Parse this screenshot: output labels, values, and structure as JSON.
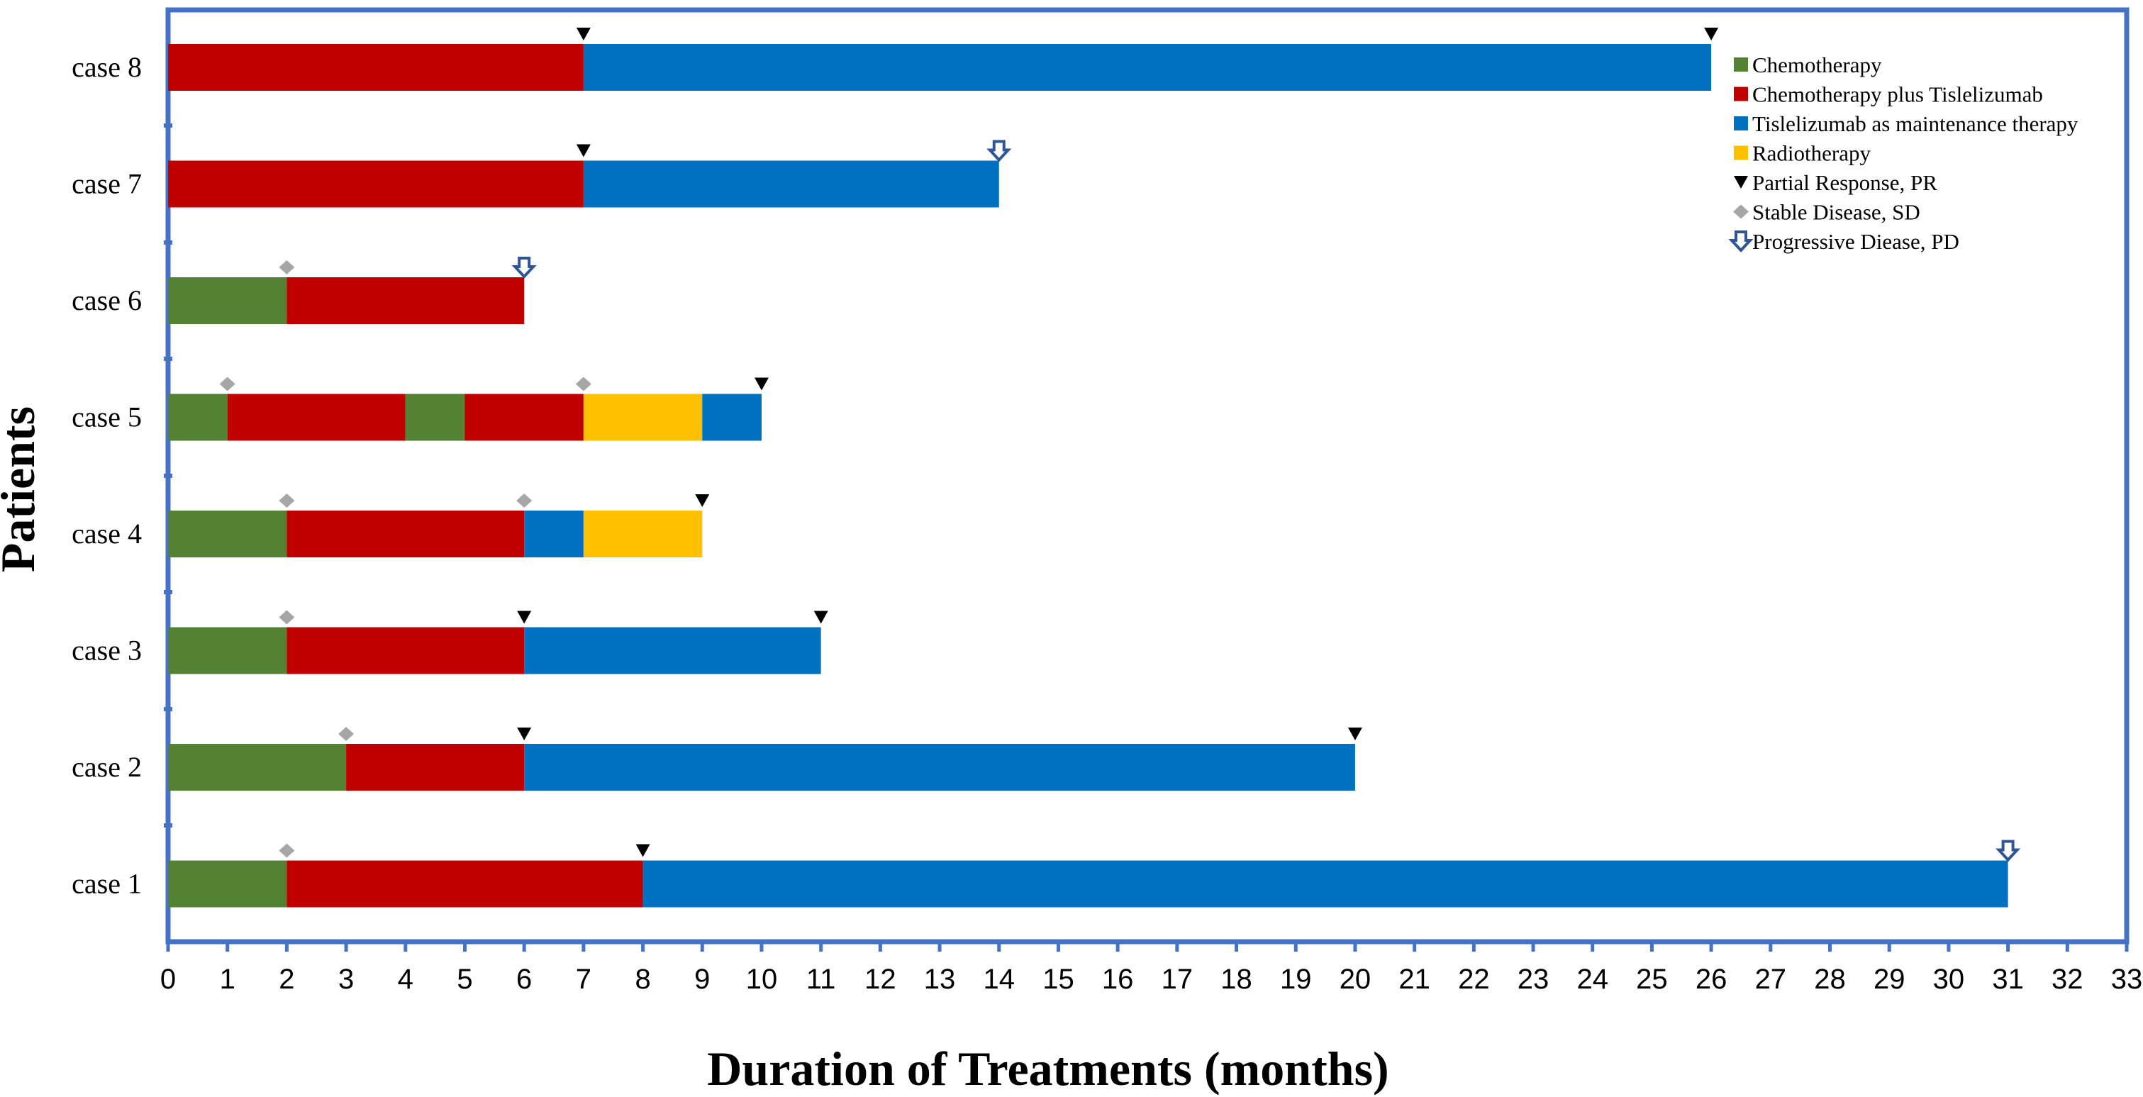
{
  "chart_data": {
    "type": "bar",
    "orientation": "horizontal",
    "stacked": true,
    "xlabel": "Duration of Treatments (months)",
    "ylabel": "Patients",
    "xlim": [
      0,
      33
    ],
    "x_ticks": [
      "0",
      "1",
      "2",
      "3",
      "4",
      "5",
      "6",
      "7",
      "8",
      "9",
      "10",
      "11",
      "12",
      "13",
      "14",
      "15",
      "16",
      "17",
      "18",
      "19",
      "20",
      "21",
      "22",
      "23",
      "24",
      "25",
      "26",
      "27",
      "28",
      "29",
      "30",
      "31",
      "32",
      "33"
    ],
    "grid": false,
    "legend_position": "top-right",
    "colors": {
      "chemo": "#548235",
      "chemo_tisle": "#C00000",
      "tisle_maint": "#0070C0",
      "radio": "#FFC000",
      "pr": "#000000",
      "sd": "#A6A6A6",
      "pd": "#2F5597",
      "frame": "#4472C4"
    },
    "legend": [
      {
        "key": "chemo",
        "label": "Chemotherapy",
        "marker": "square"
      },
      {
        "key": "chemo_tisle",
        "label": "Chemotherapy plus Tislelizumab",
        "marker": "square"
      },
      {
        "key": "tisle_maint",
        "label": "Tislelizumab as maintenance therapy",
        "marker": "square"
      },
      {
        "key": "radio",
        "label": "Radiotherapy",
        "marker": "square"
      },
      {
        "key": "pr",
        "label": "Partial Response, PR",
        "marker": "triangle-down"
      },
      {
        "key": "sd",
        "label": "Stable Disease, SD",
        "marker": "diamond"
      },
      {
        "key": "pd",
        "label": "Progressive Diease, PD",
        "marker": "arrow-down"
      }
    ],
    "cases": [
      {
        "label": "case 8",
        "segments": [
          {
            "type": "chemo_tisle",
            "start": 0,
            "end": 7
          },
          {
            "type": "tisle_maint",
            "start": 7,
            "end": 26
          }
        ],
        "markers": [
          {
            "type": "pr",
            "x": 7
          },
          {
            "type": "pr",
            "x": 26
          }
        ]
      },
      {
        "label": "case 7",
        "segments": [
          {
            "type": "chemo_tisle",
            "start": 0,
            "end": 7
          },
          {
            "type": "tisle_maint",
            "start": 7,
            "end": 14
          }
        ],
        "markers": [
          {
            "type": "pr",
            "x": 7
          },
          {
            "type": "pd",
            "x": 14
          }
        ]
      },
      {
        "label": "case 6",
        "segments": [
          {
            "type": "chemo",
            "start": 0,
            "end": 2
          },
          {
            "type": "chemo_tisle",
            "start": 2,
            "end": 6
          }
        ],
        "markers": [
          {
            "type": "sd",
            "x": 2
          },
          {
            "type": "pd",
            "x": 6
          }
        ]
      },
      {
        "label": "case 5",
        "segments": [
          {
            "type": "chemo",
            "start": 0,
            "end": 1
          },
          {
            "type": "chemo_tisle",
            "start": 1,
            "end": 4
          },
          {
            "type": "chemo",
            "start": 4,
            "end": 5
          },
          {
            "type": "chemo_tisle",
            "start": 5,
            "end": 7
          },
          {
            "type": "radio",
            "start": 7,
            "end": 9
          },
          {
            "type": "tisle_maint",
            "start": 9,
            "end": 10
          }
        ],
        "markers": [
          {
            "type": "sd",
            "x": 1
          },
          {
            "type": "sd",
            "x": 7
          },
          {
            "type": "pr",
            "x": 10
          }
        ]
      },
      {
        "label": "case 4",
        "segments": [
          {
            "type": "chemo",
            "start": 0,
            "end": 2
          },
          {
            "type": "chemo_tisle",
            "start": 2,
            "end": 6
          },
          {
            "type": "tisle_maint",
            "start": 6,
            "end": 7
          },
          {
            "type": "radio",
            "start": 7,
            "end": 9
          }
        ],
        "markers": [
          {
            "type": "sd",
            "x": 2
          },
          {
            "type": "sd",
            "x": 6
          },
          {
            "type": "pr",
            "x": 9
          }
        ]
      },
      {
        "label": "case 3",
        "segments": [
          {
            "type": "chemo",
            "start": 0,
            "end": 2
          },
          {
            "type": "chemo_tisle",
            "start": 2,
            "end": 6
          },
          {
            "type": "tisle_maint",
            "start": 6,
            "end": 11
          }
        ],
        "markers": [
          {
            "type": "sd",
            "x": 2
          },
          {
            "type": "pr",
            "x": 6
          },
          {
            "type": "pr",
            "x": 11
          }
        ]
      },
      {
        "label": "case 2",
        "segments": [
          {
            "type": "chemo",
            "start": 0,
            "end": 3
          },
          {
            "type": "chemo_tisle",
            "start": 3,
            "end": 6
          },
          {
            "type": "tisle_maint",
            "start": 6,
            "end": 20
          }
        ],
        "markers": [
          {
            "type": "sd",
            "x": 3
          },
          {
            "type": "pr",
            "x": 6
          },
          {
            "type": "pr",
            "x": 20
          }
        ]
      },
      {
        "label": "case 1",
        "segments": [
          {
            "type": "chemo",
            "start": 0,
            "end": 2
          },
          {
            "type": "chemo_tisle",
            "start": 2,
            "end": 8
          },
          {
            "type": "tisle_maint",
            "start": 8,
            "end": 31
          }
        ],
        "markers": [
          {
            "type": "sd",
            "x": 2
          },
          {
            "type": "pr",
            "x": 8
          },
          {
            "type": "pd",
            "x": 31
          }
        ]
      }
    ]
  }
}
